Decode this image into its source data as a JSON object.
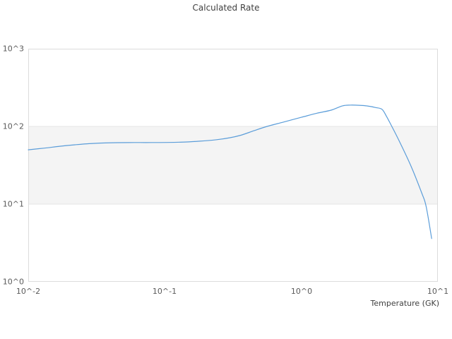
{
  "chart_data": {
    "type": "line",
    "title": "Calculated Rate",
    "xlabel": "Temperature (GK)",
    "ylabel": "",
    "x_scale": "log10",
    "y_scale": "log10",
    "xlim": [
      0.01,
      10
    ],
    "ylim": [
      1,
      1000
    ],
    "grid": "off",
    "legend": "none",
    "x_tick_values": [
      0.01,
      0.1,
      1,
      10
    ],
    "x_tick_labels": [
      "10^-2",
      "10^-1",
      "10^0",
      "10^1"
    ],
    "y_tick_values": [
      1,
      10,
      100,
      1000
    ],
    "y_tick_labels": [
      "10^0",
      "10^1",
      "10^2",
      "10^3"
    ],
    "band_y": {
      "from": 10,
      "to": 100
    },
    "series": [
      {
        "name": "calculated-rate",
        "x": [
          0.01,
          0.013,
          0.017,
          0.022,
          0.028,
          0.035,
          0.045,
          0.06,
          0.08,
          0.105,
          0.14,
          0.18,
          0.24,
          0.3,
          0.36,
          0.45,
          0.56,
          0.73,
          1.0,
          1.3,
          1.65,
          2.0,
          2.3,
          2.65,
          3.0,
          3.5,
          3.9,
          4.2,
          4.6,
          5.3,
          6.4,
          7.6,
          8.2,
          9.0
        ],
        "y": [
          50,
          52.5,
          55.5,
          58,
          60,
          61.2,
          61.8,
          62,
          62,
          62.2,
          63,
          64.5,
          67.5,
          71.5,
          77,
          88,
          100,
          113,
          131,
          148,
          162,
          184,
          188,
          187,
          184,
          175,
          166,
          135,
          100,
          61,
          30,
          14,
          9.4,
          3.6
        ]
      }
    ]
  },
  "colors": {
    "line": "#5b9dd9",
    "band_fill": "#f4f4f4",
    "band_edge": "#e6e6e6",
    "plot_border": "#dcdcdc",
    "title_text": "#3f3f3f",
    "tick_text": "#5a5a5a"
  }
}
